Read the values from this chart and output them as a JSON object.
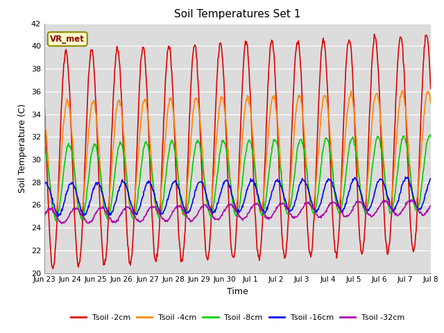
{
  "title": "Soil Temperatures Set 1",
  "xlabel": "Time",
  "ylabel": "Soil Temperature (C)",
  "ylim": [
    20,
    42
  ],
  "yticks": [
    20,
    22,
    24,
    26,
    28,
    30,
    32,
    34,
    36,
    38,
    40,
    42
  ],
  "plot_bg_color": "#dcdcdc",
  "fig_bg_color": "#ffffff",
  "series": [
    {
      "label": "Tsoil -2cm",
      "color": "#dd0000",
      "linewidth": 1.2
    },
    {
      "label": "Tsoil -4cm",
      "color": "#ff8800",
      "linewidth": 1.2
    },
    {
      "label": "Tsoil -8cm",
      "color": "#00cc00",
      "linewidth": 1.2
    },
    {
      "label": "Tsoil -16cm",
      "color": "#0000ee",
      "linewidth": 1.2
    },
    {
      "label": "Tsoil -32cm",
      "color": "#aa00aa",
      "linewidth": 1.2
    }
  ],
  "xtick_labels": [
    "Jun 23",
    "Jun 24",
    "Jun 25",
    "Jun 26",
    "Jun 27",
    "Jun 28",
    "Jun 29",
    "Jun 30",
    "Jul 1",
    "Jul 2",
    "Jul 3",
    "Jul 4",
    "Jul 5",
    "Jul 6",
    "Jul 7",
    "Jul 8"
  ],
  "annotation_text": "VR_met",
  "n_days": 15,
  "seed": 42
}
